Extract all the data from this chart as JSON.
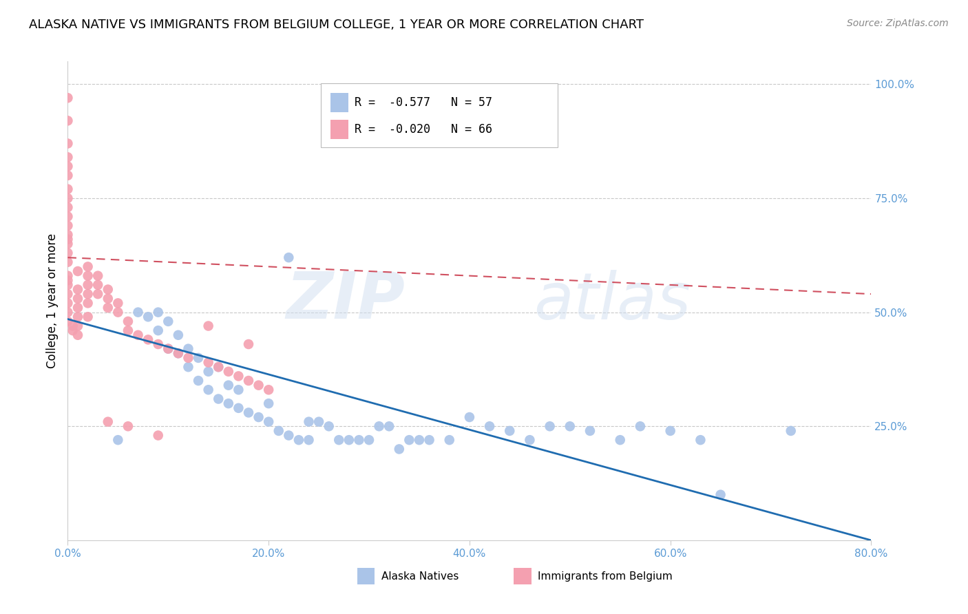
{
  "title": "ALASKA NATIVE VS IMMIGRANTS FROM BELGIUM COLLEGE, 1 YEAR OR MORE CORRELATION CHART",
  "source": "Source: ZipAtlas.com",
  "ylabel_left": "College, 1 year or more",
  "xticklabels": [
    "0.0%",
    "20.0%",
    "40.0%",
    "60.0%",
    "80.0%"
  ],
  "yticklabels_right": [
    "100.0%",
    "75.0%",
    "50.0%",
    "25.0%"
  ],
  "xlim": [
    0.0,
    0.8
  ],
  "ylim": [
    0.0,
    1.05
  ],
  "legend_entries": [
    {
      "label": "R =  -0.577   N = 57",
      "color": "#aac4e8"
    },
    {
      "label": "R =  -0.020   N = 66",
      "color": "#f4a0b0"
    }
  ],
  "legend_labels_bottom": [
    "Alaska Natives",
    "Immigrants from Belgium"
  ],
  "watermark_zip": "ZIP",
  "watermark_atlas": "atlas",
  "title_fontsize": 13,
  "axis_label_color": "#5b9bd5",
  "grid_color": "#c8c8c8",
  "blue_scatter_color": "#aac4e8",
  "pink_scatter_color": "#f4a0b0",
  "blue_line_color": "#1f6cb0",
  "pink_line_color": "#d05060",
  "blue_x": [
    0.05,
    0.07,
    0.08,
    0.09,
    0.09,
    0.1,
    0.1,
    0.11,
    0.11,
    0.12,
    0.12,
    0.13,
    0.13,
    0.14,
    0.14,
    0.15,
    0.15,
    0.16,
    0.16,
    0.17,
    0.17,
    0.18,
    0.19,
    0.2,
    0.2,
    0.21,
    0.22,
    0.23,
    0.24,
    0.24,
    0.25,
    0.26,
    0.27,
    0.28,
    0.29,
    0.3,
    0.31,
    0.32,
    0.33,
    0.34,
    0.35,
    0.36,
    0.38,
    0.4,
    0.42,
    0.44,
    0.46,
    0.48,
    0.5,
    0.52,
    0.55,
    0.57,
    0.6,
    0.63,
    0.65,
    0.72,
    0.22
  ],
  "blue_y": [
    0.22,
    0.5,
    0.49,
    0.46,
    0.5,
    0.42,
    0.48,
    0.45,
    0.41,
    0.42,
    0.38,
    0.4,
    0.35,
    0.33,
    0.37,
    0.31,
    0.38,
    0.3,
    0.34,
    0.33,
    0.29,
    0.28,
    0.27,
    0.26,
    0.3,
    0.24,
    0.23,
    0.22,
    0.22,
    0.26,
    0.26,
    0.25,
    0.22,
    0.22,
    0.22,
    0.22,
    0.25,
    0.25,
    0.2,
    0.22,
    0.22,
    0.22,
    0.22,
    0.27,
    0.25,
    0.24,
    0.22,
    0.25,
    0.25,
    0.24,
    0.22,
    0.25,
    0.24,
    0.22,
    0.1,
    0.24,
    0.62
  ],
  "pink_x": [
    0.0,
    0.0,
    0.0,
    0.0,
    0.0,
    0.0,
    0.0,
    0.0,
    0.0,
    0.0,
    0.0,
    0.0,
    0.0,
    0.0,
    0.0,
    0.0,
    0.0,
    0.0,
    0.0,
    0.0,
    0.005,
    0.005,
    0.01,
    0.01,
    0.01,
    0.01,
    0.01,
    0.01,
    0.02,
    0.02,
    0.02,
    0.02,
    0.02,
    0.03,
    0.03,
    0.03,
    0.04,
    0.04,
    0.04,
    0.05,
    0.05,
    0.06,
    0.06,
    0.07,
    0.08,
    0.09,
    0.1,
    0.11,
    0.12,
    0.14,
    0.15,
    0.16,
    0.17,
    0.18,
    0.19,
    0.2,
    0.14,
    0.18,
    0.0,
    0.0,
    0.0,
    0.01,
    0.02,
    0.04,
    0.06,
    0.09
  ],
  "pink_y": [
    0.97,
    0.92,
    0.87,
    0.84,
    0.8,
    0.77,
    0.75,
    0.73,
    0.71,
    0.69,
    0.67,
    0.65,
    0.63,
    0.61,
    0.58,
    0.56,
    0.54,
    0.52,
    0.5,
    0.48,
    0.47,
    0.46,
    0.55,
    0.53,
    0.51,
    0.49,
    0.47,
    0.45,
    0.6,
    0.58,
    0.56,
    0.54,
    0.52,
    0.58,
    0.56,
    0.54,
    0.55,
    0.53,
    0.51,
    0.52,
    0.5,
    0.48,
    0.46,
    0.45,
    0.44,
    0.43,
    0.42,
    0.41,
    0.4,
    0.39,
    0.38,
    0.37,
    0.36,
    0.35,
    0.34,
    0.33,
    0.47,
    0.43,
    0.66,
    0.82,
    0.57,
    0.59,
    0.49,
    0.26,
    0.25,
    0.23
  ],
  "blue_line_x0": 0.0,
  "blue_line_y0": 0.485,
  "blue_line_x1": 0.8,
  "blue_line_y1": 0.0,
  "pink_line_x0": 0.0,
  "pink_line_y0": 0.62,
  "pink_line_x1": 0.8,
  "pink_line_y1": 0.54
}
